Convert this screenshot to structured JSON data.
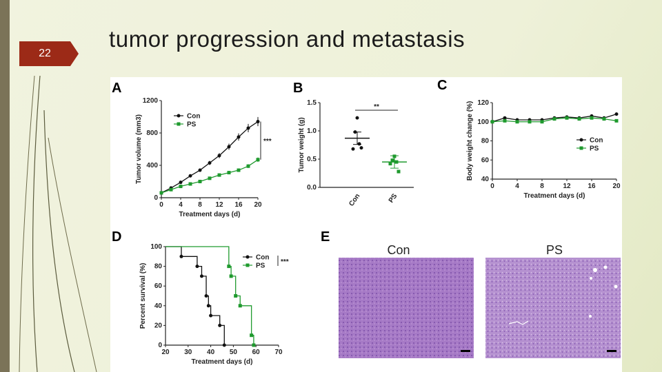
{
  "slide": {
    "number": "22",
    "title": "tumor progression and metastasis"
  },
  "colors": {
    "con": "#111111",
    "ps": "#1f9a2e",
    "accent": "#9c2a17",
    "histology": "#a477c4"
  },
  "figure": {
    "panel_letters": [
      "A",
      "B",
      "C",
      "D",
      "E"
    ],
    "significance": {
      "A": "***",
      "B": "**",
      "D": "***"
    },
    "histology_labels": [
      "Con",
      "PS"
    ]
  },
  "chart_data": [
    {
      "panel": "A",
      "type": "line",
      "xlabel": "Treatment days (d)",
      "ylabel": "Tumor volume (mm3)",
      "xlim": [
        0,
        20
      ],
      "ylim": [
        0,
        1200
      ],
      "xticks": [
        0,
        4,
        8,
        12,
        16,
        20
      ],
      "yticks": [
        0,
        400,
        800,
        1200
      ],
      "legend": "top-left",
      "series": [
        {
          "name": "Con",
          "x": [
            0,
            2,
            4,
            6,
            8,
            10,
            12,
            14,
            16,
            18,
            20
          ],
          "y": [
            60,
            120,
            190,
            270,
            340,
            430,
            520,
            630,
            750,
            860,
            940
          ]
        },
        {
          "name": "PS",
          "x": [
            0,
            2,
            4,
            6,
            8,
            10,
            12,
            14,
            16,
            18,
            20
          ],
          "y": [
            60,
            100,
            140,
            170,
            200,
            240,
            280,
            310,
            340,
            390,
            470
          ]
        }
      ]
    },
    {
      "panel": "B",
      "type": "scatter",
      "ylabel": "Tumor weight (g)",
      "ylim": [
        0,
        1.5
      ],
      "yticks": [
        "0.0",
        "0.5",
        "1.0",
        "1.5"
      ],
      "categories": [
        "Con",
        "PS"
      ],
      "series": [
        {
          "name": "Con",
          "values": [
            1.23,
            0.98,
            0.77,
            0.68,
            0.7
          ],
          "mean": 0.87
        },
        {
          "name": "PS",
          "values": [
            0.55,
            0.48,
            0.45,
            0.42,
            0.28
          ],
          "mean": 0.45
        }
      ]
    },
    {
      "panel": "C",
      "type": "line",
      "xlabel": "Treatment days (d)",
      "ylabel": "Body weight change (%)",
      "xlim": [
        0,
        20
      ],
      "ylim": [
        40,
        120
      ],
      "xticks": [
        0,
        4,
        8,
        12,
        16,
        20
      ],
      "yticks": [
        40,
        60,
        80,
        100,
        120
      ],
      "legend": "right",
      "series": [
        {
          "name": "Con",
          "x": [
            0,
            2,
            4,
            6,
            8,
            10,
            12,
            14,
            16,
            18,
            20
          ],
          "y": [
            100,
            104,
            102,
            102,
            102,
            104,
            105,
            104,
            106,
            104,
            108
          ]
        },
        {
          "name": "PS",
          "x": [
            0,
            2,
            4,
            6,
            8,
            10,
            12,
            14,
            16,
            18,
            20
          ],
          "y": [
            100,
            101,
            100,
            100,
            100,
            103,
            104,
            103,
            104,
            103,
            101
          ]
        }
      ]
    },
    {
      "panel": "D",
      "type": "line",
      "xlabel": "Treatment days (d)",
      "ylabel": "Percent survival (%)",
      "xlim": [
        20,
        70
      ],
      "ylim": [
        0,
        100
      ],
      "xticks": [
        20,
        30,
        40,
        50,
        60,
        70
      ],
      "yticks": [
        0,
        20,
        40,
        60,
        80,
        100
      ],
      "legend": "top-right",
      "series": [
        {
          "name": "Con",
          "x": [
            20,
            20,
            27,
            27,
            34,
            34,
            36,
            36,
            38,
            38,
            39,
            39,
            40,
            40,
            44,
            44,
            46,
            46
          ],
          "y": [
            100,
            100,
            100,
            90,
            90,
            80,
            80,
            70,
            70,
            50,
            50,
            40,
            40,
            30,
            30,
            20,
            20,
            0
          ]
        },
        {
          "name": "PS",
          "x": [
            20,
            48,
            48,
            49,
            49,
            51,
            51,
            53,
            53,
            58,
            58,
            59,
            59
          ],
          "y": [
            100,
            100,
            80,
            80,
            70,
            70,
            50,
            50,
            40,
            40,
            10,
            10,
            0
          ]
        }
      ]
    }
  ]
}
